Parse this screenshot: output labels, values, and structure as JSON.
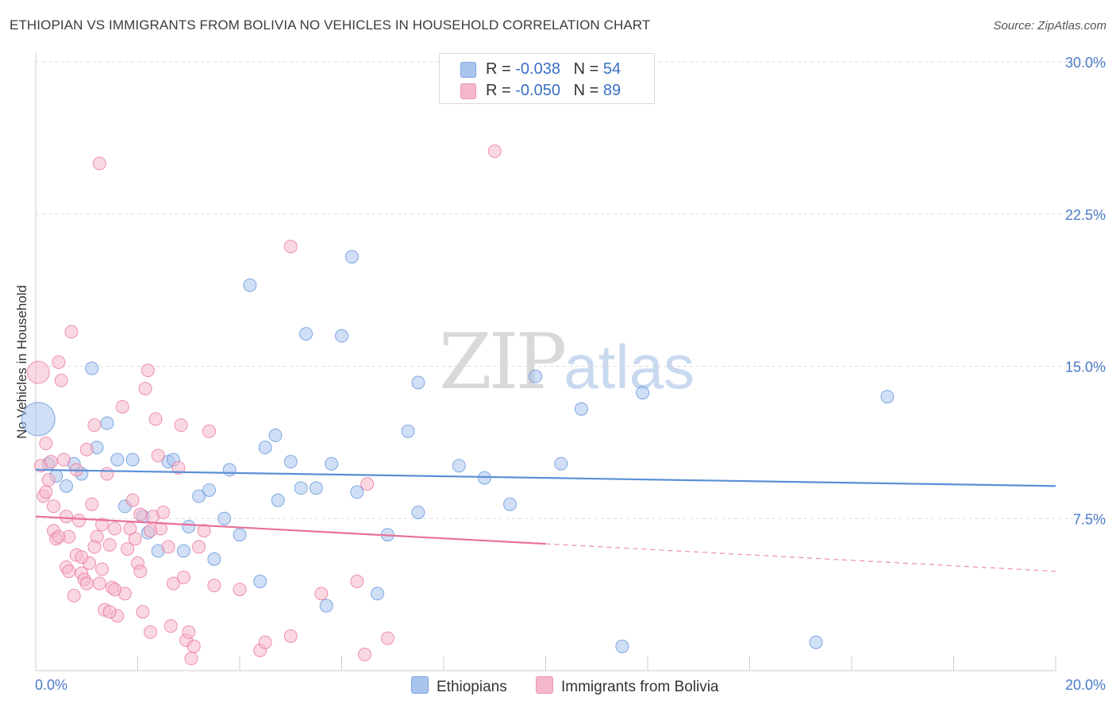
{
  "header": {
    "title": "ETHIOPIAN VS IMMIGRANTS FROM BOLIVIA NO VEHICLES IN HOUSEHOLD CORRELATION CHART",
    "source": "Source: ZipAtlas.com"
  },
  "watermark": {
    "zip": "ZIP",
    "atlas": "atlas"
  },
  "legend": {
    "rows": [
      {
        "r_label": "R = ",
        "r_value": "-0.038",
        "n_label": "N = ",
        "n_value": "54",
        "color": "#a9c5ee"
      },
      {
        "r_label": "R = ",
        "r_value": "-0.050",
        "n_label": "N = ",
        "n_value": "89",
        "color": "#f5b8cb"
      }
    ]
  },
  "bottom_legend": [
    {
      "label": "Ethiopians",
      "color": "#a9c5ee"
    },
    {
      "label": "Immigrants from Bolivia",
      "color": "#f5b8cb"
    }
  ],
  "chart_data": {
    "type": "scatter",
    "title": "ETHIOPIAN VS IMMIGRANTS FROM BOLIVIA NO VEHICLES IN HOUSEHOLD CORRELATION CHART",
    "xlabel": "",
    "ylabel": "No Vehicles in Household",
    "xlim": [
      0,
      20
    ],
    "ylim": [
      0,
      30
    ],
    "x_ticks": [
      "0.0%",
      "20.0%"
    ],
    "y_ticks": [
      {
        "value": 7.5,
        "label": "7.5%"
      },
      {
        "value": 15,
        "label": "15.0%"
      },
      {
        "value": 22.5,
        "label": "22.5%"
      },
      {
        "value": 30,
        "label": "30.0%"
      }
    ],
    "grid": true,
    "series": [
      {
        "name": "Ethiopians",
        "color": "#5b8fd6",
        "fill": "#a9c5ee",
        "trend": {
          "x0": 0,
          "y0": 9.9,
          "x1": 20,
          "y1": 9.1,
          "dashed_from": null
        },
        "points": [
          [
            0.05,
            12.4,
            3
          ],
          [
            0.25,
            10.2,
            1
          ],
          [
            0.4,
            9.6,
            1
          ],
          [
            0.6,
            9.1,
            1
          ],
          [
            0.75,
            10.2,
            1
          ],
          [
            0.9,
            9.7,
            1
          ],
          [
            1.1,
            14.9,
            1
          ],
          [
            1.2,
            11.0,
            1
          ],
          [
            1.4,
            12.2,
            1
          ],
          [
            1.6,
            10.4,
            1
          ],
          [
            1.75,
            8.1,
            1
          ],
          [
            1.9,
            10.4,
            1
          ],
          [
            2.1,
            7.6,
            1
          ],
          [
            2.2,
            6.8,
            1
          ],
          [
            2.4,
            5.9,
            1
          ],
          [
            2.6,
            10.3,
            1
          ],
          [
            2.7,
            10.4,
            1
          ],
          [
            2.9,
            5.9,
            1
          ],
          [
            3.0,
            7.1,
            1
          ],
          [
            3.2,
            8.6,
            1
          ],
          [
            3.4,
            8.9,
            1
          ],
          [
            3.5,
            5.5,
            1
          ],
          [
            3.7,
            7.5,
            1
          ],
          [
            3.8,
            9.9,
            1
          ],
          [
            4.0,
            6.7,
            1
          ],
          [
            4.2,
            19.0,
            1
          ],
          [
            4.4,
            4.4,
            1
          ],
          [
            4.5,
            11.0,
            1
          ],
          [
            4.7,
            11.6,
            1
          ],
          [
            4.75,
            8.4,
            1
          ],
          [
            5.0,
            10.3,
            1
          ],
          [
            5.2,
            9.0,
            1
          ],
          [
            5.5,
            9.0,
            1
          ],
          [
            5.3,
            16.6,
            1
          ],
          [
            5.7,
            3.2,
            1
          ],
          [
            5.8,
            10.2,
            1
          ],
          [
            6.0,
            16.5,
            1
          ],
          [
            6.2,
            20.4,
            1
          ],
          [
            6.3,
            8.8,
            1
          ],
          [
            6.7,
            3.8,
            1
          ],
          [
            6.9,
            6.7,
            1
          ],
          [
            7.3,
            11.8,
            1
          ],
          [
            7.5,
            14.2,
            1
          ],
          [
            7.5,
            7.8,
            1
          ],
          [
            8.3,
            10.1,
            1
          ],
          [
            8.8,
            9.5,
            1
          ],
          [
            9.3,
            8.2,
            1
          ],
          [
            9.8,
            14.5,
            1
          ],
          [
            10.3,
            10.2,
            1
          ],
          [
            10.7,
            12.9,
            1
          ],
          [
            11.9,
            13.7,
            1
          ],
          [
            11.5,
            1.2,
            1
          ],
          [
            15.3,
            1.4,
            1
          ],
          [
            16.7,
            13.5,
            1
          ]
        ]
      },
      {
        "name": "Immigrants from Bolivia",
        "color": "#e8709a",
        "fill": "#f5b8cb",
        "trend": {
          "x0": 0,
          "y0": 7.6,
          "x1": 20,
          "y1": 4.9,
          "dashed_from": 10
        },
        "points": [
          [
            0.05,
            14.7,
            2
          ],
          [
            0.1,
            10.1,
            1
          ],
          [
            0.15,
            8.6,
            1
          ],
          [
            0.2,
            11.2,
            1
          ],
          [
            0.25,
            9.4,
            1
          ],
          [
            0.3,
            10.3,
            1
          ],
          [
            0.35,
            6.9,
            1
          ],
          [
            0.4,
            6.5,
            1
          ],
          [
            0.45,
            15.2,
            1
          ],
          [
            0.5,
            14.3,
            1
          ],
          [
            0.55,
            10.4,
            1
          ],
          [
            0.6,
            7.6,
            1
          ],
          [
            0.65,
            6.6,
            1
          ],
          [
            0.7,
            16.7,
            1
          ],
          [
            0.75,
            3.7,
            1
          ],
          [
            0.8,
            5.7,
            1
          ],
          [
            0.85,
            7.4,
            1
          ],
          [
            0.9,
            4.8,
            1
          ],
          [
            0.95,
            4.5,
            1
          ],
          [
            1.0,
            10.9,
            1
          ],
          [
            1.05,
            5.3,
            1
          ],
          [
            1.1,
            8.2,
            1
          ],
          [
            1.15,
            12.1,
            1
          ],
          [
            1.2,
            6.6,
            1
          ],
          [
            1.25,
            4.3,
            1
          ],
          [
            1.3,
            7.2,
            1
          ],
          [
            1.35,
            3.0,
            1
          ],
          [
            1.4,
            9.7,
            1
          ],
          [
            1.45,
            6.2,
            1
          ],
          [
            1.5,
            4.1,
            1
          ],
          [
            1.55,
            7.0,
            1
          ],
          [
            1.6,
            2.7,
            1
          ],
          [
            1.7,
            13.0,
            1
          ],
          [
            1.75,
            3.8,
            1
          ],
          [
            1.8,
            6.0,
            1
          ],
          [
            1.9,
            8.4,
            1
          ],
          [
            2.0,
            5.3,
            1
          ],
          [
            2.05,
            7.7,
            1
          ],
          [
            2.1,
            2.9,
            1
          ],
          [
            2.15,
            13.9,
            1
          ],
          [
            2.2,
            14.8,
            1
          ],
          [
            2.25,
            1.9,
            1
          ],
          [
            2.3,
            7.6,
            1
          ],
          [
            2.35,
            12.4,
            1
          ],
          [
            2.4,
            10.6,
            1
          ],
          [
            2.45,
            7.0,
            1
          ],
          [
            2.5,
            7.8,
            1
          ],
          [
            2.6,
            6.1,
            1
          ],
          [
            2.65,
            2.2,
            1
          ],
          [
            2.7,
            4.3,
            1
          ],
          [
            2.8,
            10.0,
            1
          ],
          [
            2.85,
            12.1,
            1
          ],
          [
            2.9,
            4.6,
            1
          ],
          [
            2.95,
            1.5,
            1
          ],
          [
            3.0,
            1.9,
            1
          ],
          [
            3.05,
            0.6,
            1
          ],
          [
            3.1,
            1.2,
            1
          ],
          [
            3.2,
            6.1,
            1
          ],
          [
            3.3,
            6.9,
            1
          ],
          [
            3.4,
            11.8,
            1
          ],
          [
            3.5,
            4.2,
            1
          ],
          [
            1.25,
            25.0,
            1
          ],
          [
            0.8,
            9.9,
            1
          ],
          [
            0.2,
            8.8,
            1
          ],
          [
            0.45,
            6.6,
            1
          ],
          [
            0.35,
            8.1,
            1
          ],
          [
            0.6,
            5.1,
            1
          ],
          [
            0.65,
            4.9,
            1
          ],
          [
            0.9,
            5.6,
            1
          ],
          [
            1.0,
            4.3,
            1
          ],
          [
            1.15,
            6.1,
            1
          ],
          [
            1.3,
            5.0,
            1
          ],
          [
            1.45,
            2.9,
            1
          ],
          [
            1.55,
            4.0,
            1
          ],
          [
            1.85,
            7.0,
            1
          ],
          [
            1.95,
            6.5,
            1
          ],
          [
            2.05,
            4.9,
            1
          ],
          [
            2.25,
            6.9,
            1
          ],
          [
            4.0,
            4.0,
            1
          ],
          [
            4.4,
            1.0,
            1
          ],
          [
            4.5,
            1.4,
            1
          ],
          [
            5.0,
            20.9,
            1
          ],
          [
            5.0,
            1.7,
            1
          ],
          [
            5.6,
            3.8,
            1
          ],
          [
            6.3,
            4.4,
            1
          ],
          [
            6.5,
            9.2,
            1
          ],
          [
            6.45,
            0.8,
            1
          ],
          [
            6.9,
            1.6,
            1
          ],
          [
            9.0,
            25.6,
            1
          ]
        ]
      }
    ]
  }
}
